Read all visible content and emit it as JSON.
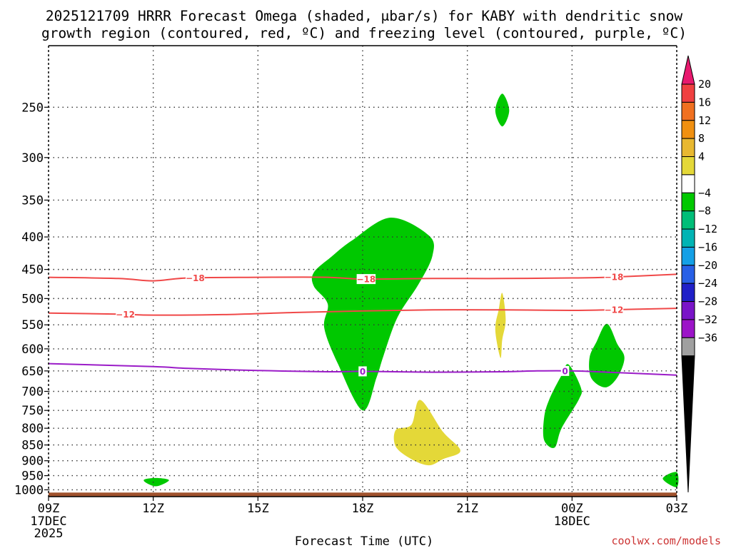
{
  "chart_data": {
    "type": "time-height-contour",
    "title_line1": "2025121709 HRRR Forecast Omega (shaded, μbar/s) for KABY with dendritic snow",
    "title_line2": "growth region (contoured, red, ºC) and freezing level (contoured, purple, ºC)",
    "xlabel": "Forecast Time (UTC)",
    "x_ticks": [
      {
        "h": 0,
        "label": "09Z",
        "sub1": "17DEC",
        "sub2": "2025"
      },
      {
        "h": 3,
        "label": "12Z",
        "sub1": "",
        "sub2": ""
      },
      {
        "h": 6,
        "label": "15Z",
        "sub1": "",
        "sub2": ""
      },
      {
        "h": 9,
        "label": "18Z",
        "sub1": "",
        "sub2": ""
      },
      {
        "h": 12,
        "label": "21Z",
        "sub1": "",
        "sub2": ""
      },
      {
        "h": 15,
        "label": "00Z",
        "sub1": "18DEC",
        "sub2": ""
      },
      {
        "h": 18,
        "label": "03Z",
        "sub1": "",
        "sub2": ""
      }
    ],
    "xlim": [
      0,
      18
    ],
    "ylim_hpa": [
      1025,
      200
    ],
    "y_ticks": [
      250,
      300,
      350,
      400,
      450,
      500,
      550,
      600,
      650,
      700,
      750,
      800,
      850,
      900,
      950,
      1000
    ],
    "ground_hpa": 1010,
    "colorbar": {
      "labels": [
        "20",
        "16",
        "12",
        "8",
        "4",
        "−4",
        "−8",
        "−12",
        "−16",
        "−20",
        "−24",
        "−28",
        "−32",
        "−36"
      ],
      "colors": [
        "#e8196e",
        "#f04040",
        "#f07020",
        "#f09010",
        "#e8b830",
        "#e4d838",
        "#ffffff",
        "#00c800",
        "#00be78",
        "#00b4b4",
        "#14a0e6",
        "#2860e6",
        "#2020c8",
        "#7a14c8",
        "#9c14c8",
        "#a0a0a0",
        "#000000"
      ]
    },
    "contours": [
      {
        "name": "dgz-minus18",
        "label": "−18",
        "color": "#f04848",
        "points": [
          [
            0,
            463
          ],
          [
            2,
            465
          ],
          [
            3,
            469
          ],
          [
            4,
            464
          ],
          [
            6,
            463
          ],
          [
            8,
            463
          ],
          [
            9,
            466
          ],
          [
            11,
            465
          ],
          [
            13,
            465
          ],
          [
            15,
            464
          ],
          [
            16,
            463
          ],
          [
            18,
            458
          ]
        ],
        "label_at": [
          4.2,
          9.1,
          16.2
        ]
      },
      {
        "name": "dgz-minus12",
        "label": "−12",
        "color": "#f04848",
        "points": [
          [
            0,
            527
          ],
          [
            2,
            529
          ],
          [
            3,
            531
          ],
          [
            5,
            530
          ],
          [
            7,
            526
          ],
          [
            9,
            523
          ],
          [
            11,
            521
          ],
          [
            13,
            521
          ],
          [
            15,
            522
          ],
          [
            16,
            521
          ],
          [
            18,
            518
          ]
        ],
        "label_at": [
          2.2,
          16.2
        ]
      },
      {
        "name": "freezing-level-0",
        "label": "0",
        "color": "#9b1cc8",
        "points": [
          [
            0,
            633
          ],
          [
            3,
            640
          ],
          [
            4,
            644
          ],
          [
            6,
            649
          ],
          [
            8,
            652
          ],
          [
            9,
            651
          ],
          [
            11,
            653
          ],
          [
            13,
            652
          ],
          [
            14,
            650
          ],
          [
            15,
            650
          ],
          [
            16,
            653
          ],
          [
            18,
            660
          ]
        ],
        "label_at": [
          9.0,
          14.8
        ]
      }
    ],
    "regions": [
      {
        "name": "omega-green-main",
        "value": "-4 to -8",
        "color": "#00c800",
        "points": [
          [
            9.8,
            373
          ],
          [
            10.9,
            398
          ],
          [
            11.0,
            428
          ],
          [
            10.6,
            475
          ],
          [
            10.0,
            535
          ],
          [
            9.6,
            615
          ],
          [
            9.4,
            665
          ],
          [
            9.0,
            750
          ],
          [
            8.3,
            635
          ],
          [
            7.9,
            556
          ],
          [
            8.0,
            510
          ],
          [
            7.6,
            478
          ],
          [
            7.6,
            455
          ],
          [
            8.1,
            430
          ],
          [
            8.7,
            405
          ]
        ]
      },
      {
        "name": "omega-green-top",
        "value": "-4 to -8",
        "color": "#00c800",
        "points": [
          [
            13.0,
            238
          ],
          [
            13.2,
            253
          ],
          [
            13.0,
            268
          ],
          [
            12.8,
            253
          ]
        ]
      },
      {
        "name": "omega-green-mid",
        "value": "-4 to -8",
        "color": "#00c800",
        "points": [
          [
            14.9,
            635
          ],
          [
            15.25,
            690
          ],
          [
            15.2,
            720
          ],
          [
            14.7,
            800
          ],
          [
            14.5,
            858
          ],
          [
            14.2,
            835
          ],
          [
            14.2,
            770
          ],
          [
            14.35,
            720
          ],
          [
            14.7,
            660
          ]
        ]
      },
      {
        "name": "omega-green-right",
        "value": "-4 to -8",
        "color": "#00c800",
        "points": [
          [
            16.0,
            548
          ],
          [
            16.3,
            590
          ],
          [
            16.5,
            620
          ],
          [
            16.3,
            665
          ],
          [
            15.95,
            690
          ],
          [
            15.55,
            667
          ],
          [
            15.5,
            620
          ],
          [
            15.7,
            585
          ]
        ]
      },
      {
        "name": "omega-green-low",
        "value": "-4 to -8",
        "color": "#00c800",
        "points": [
          [
            2.75,
            963
          ],
          [
            3.1,
            958
          ],
          [
            3.45,
            966
          ],
          [
            3.1,
            987
          ],
          [
            2.8,
            975
          ]
        ]
      },
      {
        "name": "omega-green-edge",
        "value": "-4 to -8",
        "color": "#00c800",
        "points": [
          [
            18.0,
            938
          ],
          [
            18.0,
            990
          ],
          [
            17.6,
            960
          ]
        ]
      },
      {
        "name": "omega-yellow-mid",
        "value": "4 to 8",
        "color": "#e4d838",
        "points": [
          [
            13.0,
            490
          ],
          [
            13.1,
            540
          ],
          [
            13.0,
            580
          ],
          [
            12.95,
            620
          ],
          [
            12.8,
            560
          ],
          [
            12.9,
            520
          ]
        ]
      },
      {
        "name": "omega-yellow-low",
        "value": "4 to 8",
        "color": "#e4d838",
        "points": [
          [
            10.65,
            722
          ],
          [
            11.3,
            810
          ],
          [
            11.8,
            868
          ],
          [
            11.3,
            895
          ],
          [
            10.9,
            915
          ],
          [
            10.4,
            895
          ],
          [
            9.95,
            855
          ],
          [
            9.95,
            805
          ],
          [
            10.4,
            790
          ]
        ]
      }
    ]
  },
  "watermark": "coolwx.com/models"
}
